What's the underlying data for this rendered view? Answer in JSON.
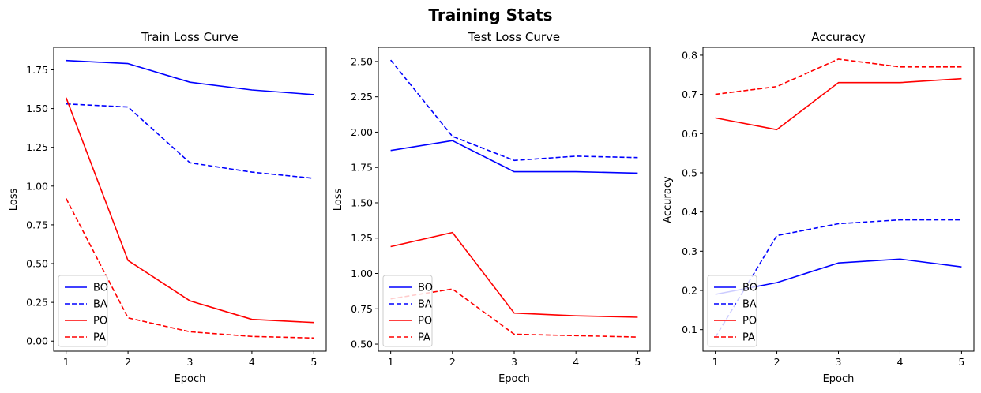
{
  "title": "Training Stats",
  "chart_data": [
    {
      "type": "line",
      "title": "Train Loss Curve",
      "xlabel": "Epoch",
      "ylabel": "Loss",
      "x": [
        1,
        2,
        3,
        4,
        5
      ],
      "xticks": [
        "1",
        "2",
        "3",
        "4",
        "5"
      ],
      "xlim": [
        0.8,
        5.2
      ],
      "ylim": [
        -0.065,
        1.895
      ],
      "yticks": [
        "0.00",
        "0.25",
        "0.50",
        "0.75",
        "1.00",
        "1.25",
        "1.50",
        "1.75"
      ],
      "ytick_values": [
        0,
        0.25,
        0.5,
        0.75,
        1.0,
        1.25,
        1.5,
        1.75
      ],
      "legend": "lower-left",
      "series": [
        {
          "name": "BO",
          "color": "#0000ff",
          "dash": "solid",
          "values": [
            1.81,
            1.79,
            1.67,
            1.62,
            1.59
          ]
        },
        {
          "name": "BA",
          "color": "#0000ff",
          "dash": "dashed",
          "values": [
            1.53,
            1.51,
            1.15,
            1.09,
            1.05
          ]
        },
        {
          "name": "PO",
          "color": "#ff0000",
          "dash": "solid",
          "values": [
            1.57,
            0.52,
            0.26,
            0.14,
            0.12
          ]
        },
        {
          "name": "PA",
          "color": "#ff0000",
          "dash": "dashed",
          "values": [
            0.92,
            0.15,
            0.06,
            0.03,
            0.02
          ]
        }
      ]
    },
    {
      "type": "line",
      "title": "Test Loss Curve",
      "xlabel": "Epoch",
      "ylabel": "Loss",
      "x": [
        1,
        2,
        3,
        4,
        5
      ],
      "xticks": [
        "1",
        "2",
        "3",
        "4",
        "5"
      ],
      "xlim": [
        0.8,
        5.2
      ],
      "ylim": [
        0.45,
        2.6
      ],
      "yticks": [
        "0.50",
        "0.75",
        "1.00",
        "1.25",
        "1.50",
        "1.75",
        "2.00",
        "2.25",
        "2.50"
      ],
      "ytick_values": [
        0.5,
        0.75,
        1.0,
        1.25,
        1.5,
        1.75,
        2.0,
        2.25,
        2.5
      ],
      "legend": "lower-left",
      "series": [
        {
          "name": "BO",
          "color": "#0000ff",
          "dash": "solid",
          "values": [
            1.87,
            1.94,
            1.72,
            1.72,
            1.71
          ]
        },
        {
          "name": "BA",
          "color": "#0000ff",
          "dash": "dashed",
          "values": [
            2.51,
            1.97,
            1.8,
            1.83,
            1.82
          ]
        },
        {
          "name": "PO",
          "color": "#ff0000",
          "dash": "solid",
          "values": [
            1.19,
            1.29,
            0.72,
            0.7,
            0.69
          ]
        },
        {
          "name": "PA",
          "color": "#ff0000",
          "dash": "dashed",
          "values": [
            0.82,
            0.89,
            0.57,
            0.56,
            0.55
          ]
        }
      ]
    },
    {
      "type": "line",
      "title": "Accuracy",
      "xlabel": "Epoch",
      "ylabel": "Accuracy",
      "x": [
        1,
        2,
        3,
        4,
        5
      ],
      "xticks": [
        "1",
        "2",
        "3",
        "4",
        "5"
      ],
      "xlim": [
        0.8,
        5.2
      ],
      "ylim": [
        0.045,
        0.82
      ],
      "yticks": [
        "0.1",
        "0.2",
        "0.3",
        "0.4",
        "0.5",
        "0.6",
        "0.7",
        "0.8"
      ],
      "ytick_values": [
        0.1,
        0.2,
        0.3,
        0.4,
        0.5,
        0.6,
        0.7,
        0.8
      ],
      "legend": "lower-left",
      "series": [
        {
          "name": "BO",
          "color": "#0000ff",
          "dash": "solid",
          "values": [
            0.19,
            0.22,
            0.27,
            0.28,
            0.26
          ]
        },
        {
          "name": "BA",
          "color": "#0000ff",
          "dash": "dashed",
          "values": [
            0.08,
            0.34,
            0.37,
            0.38,
            0.38
          ]
        },
        {
          "name": "PO",
          "color": "#ff0000",
          "dash": "solid",
          "values": [
            0.64,
            0.61,
            0.73,
            0.73,
            0.74
          ]
        },
        {
          "name": "PA",
          "color": "#ff0000",
          "dash": "dashed",
          "values": [
            0.7,
            0.72,
            0.79,
            0.77,
            0.77
          ]
        }
      ]
    }
  ]
}
